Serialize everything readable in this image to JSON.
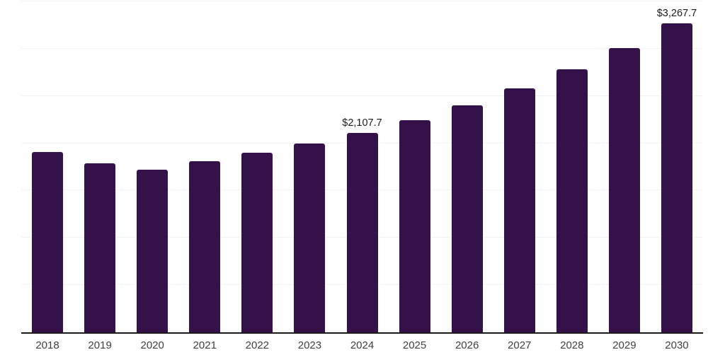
{
  "chart_data": {
    "type": "bar",
    "title": "",
    "xlabel": "",
    "ylabel": "",
    "categories": [
      "2018",
      "2019",
      "2020",
      "2021",
      "2022",
      "2023",
      "2024",
      "2025",
      "2026",
      "2027",
      "2028",
      "2029",
      "2030"
    ],
    "values": [
      1905,
      1790,
      1720,
      1810,
      1900,
      1995,
      2107.7,
      2245,
      2400,
      2580,
      2780,
      3010,
      3267.7
    ],
    "data_labels": [
      "",
      "",
      "",
      "",
      "",
      "",
      "$2,107.7",
      "",
      "",
      "",
      "",
      "",
      "$3,267.7"
    ],
    "ylim": [
      0,
      3500
    ],
    "grid_step": 500,
    "grid": true,
    "legend_position": "none",
    "y_tick_labels_visible": false,
    "colors": {
      "bar": "#341148",
      "axis": "#1a1a1a",
      "grid": "#f2f2f2",
      "data_label": "#1a1a1a",
      "tick_label": "#404040",
      "background": "#ffffff"
    }
  }
}
